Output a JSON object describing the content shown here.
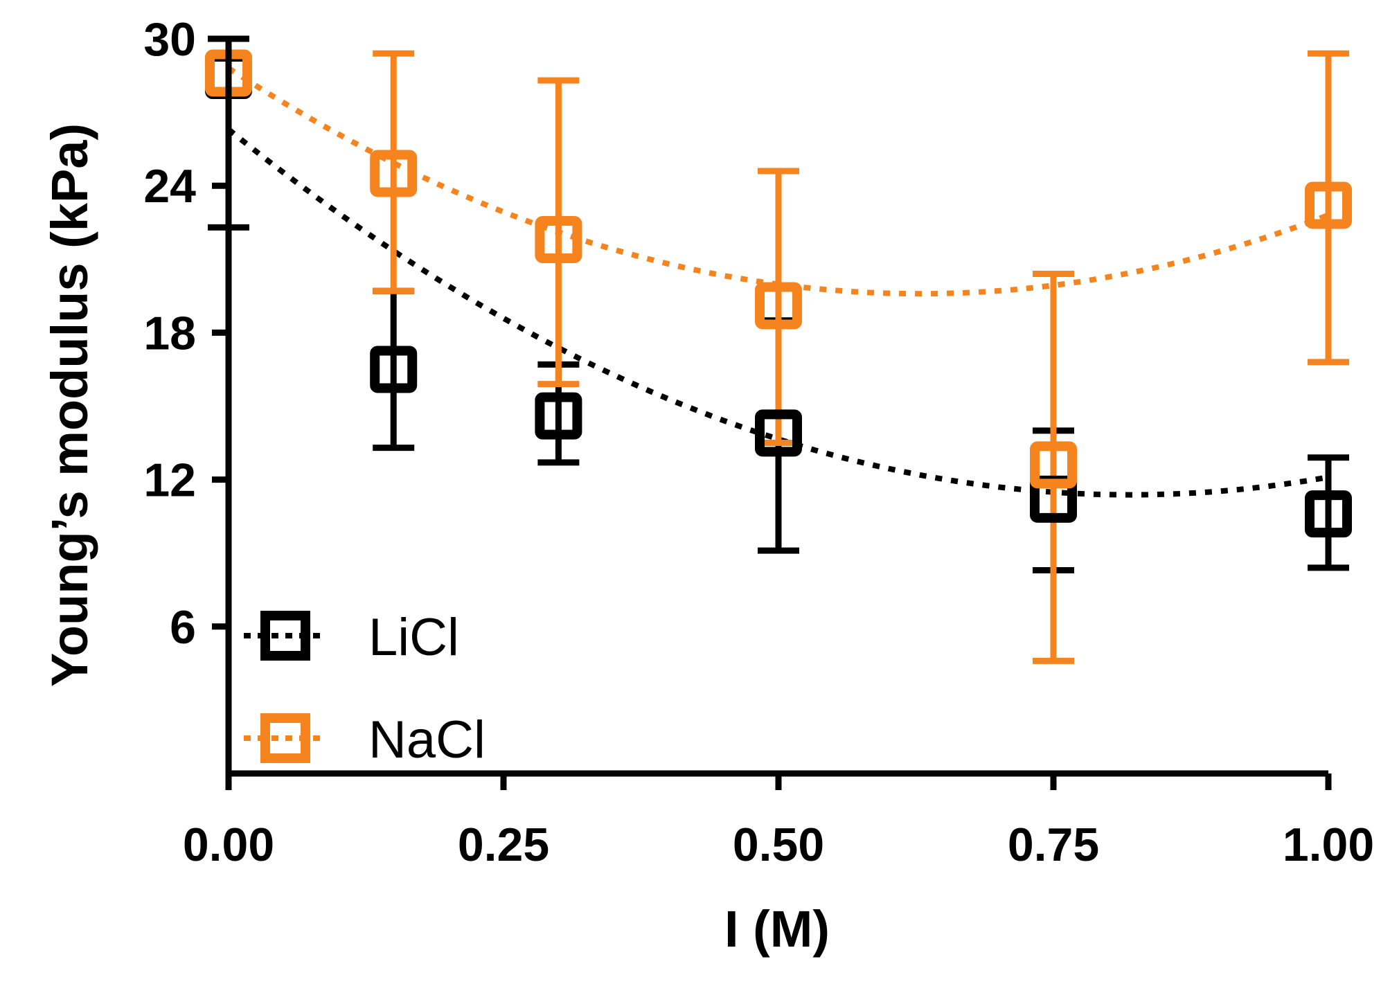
{
  "chart_data": {
    "type": "scatter",
    "title": "",
    "xlabel": "I (M)",
    "ylabel": "Young’s modulus (kPa)",
    "xlim": [
      0,
      1
    ],
    "ylim": [
      0,
      30
    ],
    "x_ticks": [
      "0.00",
      "0.25",
      "0.50",
      "0.75",
      "1.00"
    ],
    "x_tick_values": [
      0,
      0.25,
      0.5,
      0.75,
      1.0
    ],
    "y_ticks": [
      "6",
      "12",
      "18",
      "24",
      "30"
    ],
    "y_tick_values": [
      6,
      12,
      18,
      24,
      30
    ],
    "legend_position": "bottom-left",
    "series": [
      {
        "name": "LiCl",
        "color": "#000000",
        "x": [
          0,
          0.15,
          0.3,
          0.5,
          0.75,
          1.0
        ],
        "y": [
          28.5,
          16.5,
          14.6,
          13.9,
          11.2,
          10.6
        ],
        "err_low": [
          22.3,
          13.3,
          12.7,
          9.1,
          8.3,
          8.4
        ],
        "err_high": [
          30,
          19.7,
          16.7,
          18.5,
          14.0,
          12.9
        ],
        "fit": [
          26.3,
          -36.4,
          22.2
        ]
      },
      {
        "name": "NaCl",
        "color": "#f5841f",
        "x": [
          0,
          0.15,
          0.3,
          0.5,
          0.75,
          1.0
        ],
        "y": [
          28.6,
          24.5,
          21.8,
          19.1,
          12.6,
          23.2
        ],
        "err_low": [
          28.6,
          19.7,
          15.9,
          13.5,
          4.6,
          16.8
        ],
        "err_high": [
          28.6,
          29.4,
          28.3,
          24.6,
          20.4,
          29.4
        ],
        "fit": [
          28.8,
          -29.3,
          23.3
        ]
      }
    ]
  }
}
